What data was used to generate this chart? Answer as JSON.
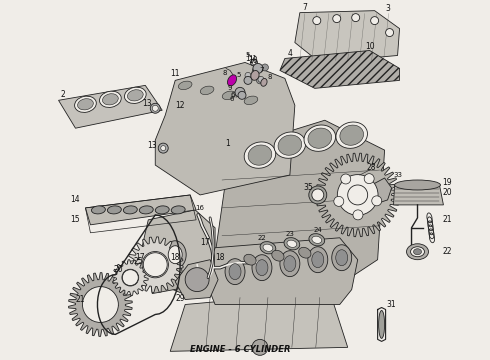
{
  "title": "ENGINE - 6 CYLINDER",
  "title_fontsize": 6,
  "title_color": "#111111",
  "bg_color": "#f0ede8",
  "line_color": "#222222",
  "fig_width": 4.9,
  "fig_height": 3.6,
  "dpi": 100,
  "hatching": "///",
  "lw": 0.6
}
